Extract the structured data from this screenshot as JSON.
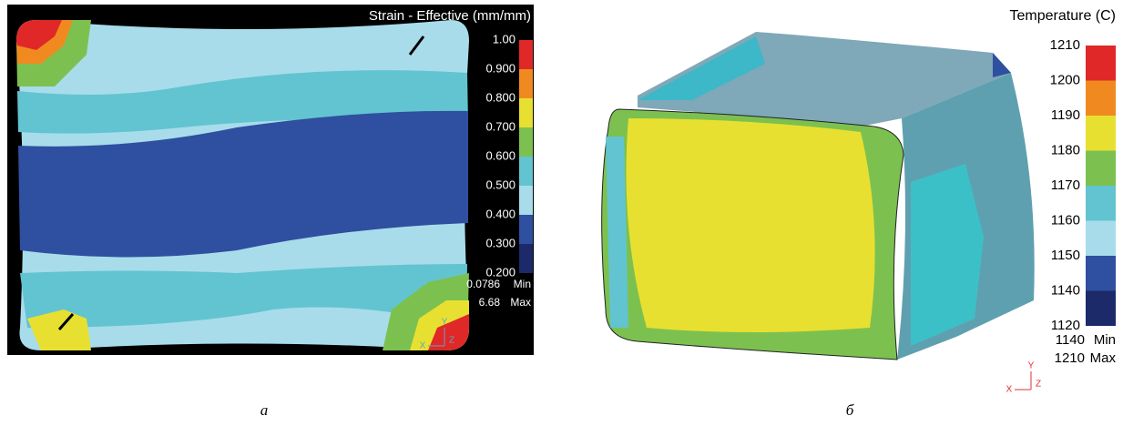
{
  "panel_a": {
    "title": "Strain - Effective (mm/mm)",
    "legend": [
      "1.00",
      "0.900",
      "0.800",
      "0.700",
      "0.600",
      "0.500",
      "0.400",
      "0.300",
      "0.200"
    ],
    "min": {
      "value": "0.0786",
      "label": "Min"
    },
    "max": {
      "value": "6.68",
      "label": "Max"
    },
    "triad": [
      "Y",
      "X",
      "Z"
    ],
    "caption": "а"
  },
  "panel_b": {
    "title": "Temperature (C)",
    "legend": [
      "1210",
      "1200",
      "1190",
      "1180",
      "1170",
      "1160",
      "1150",
      "1140",
      "1120"
    ],
    "min": {
      "value": "1140",
      "label": "Min"
    },
    "max": {
      "value": "1210",
      "label": "Max"
    },
    "triad": [
      "Y",
      "X",
      "Z"
    ],
    "caption": "б"
  }
}
